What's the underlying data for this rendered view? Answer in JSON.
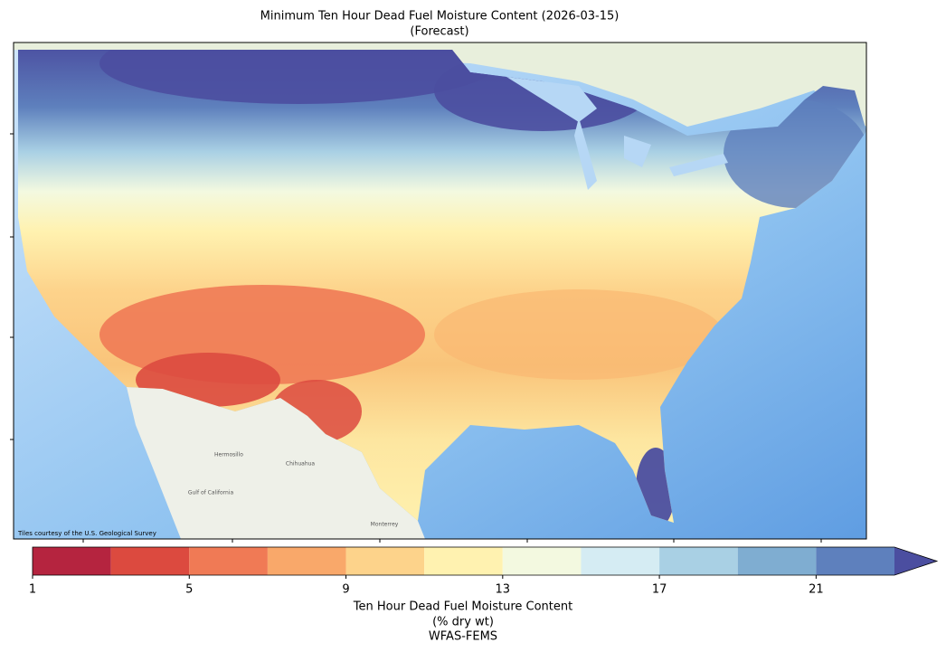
{
  "map": {
    "title": "Minimum Ten Hour Dead Fuel Moisture Content (2026-03-15)",
    "subtitle": "(Forecast)",
    "attribution": "Tiles courtesy of the U.S. Geological Survey",
    "places": [
      "Hermosillo",
      "Chihuahua",
      "Monterrey",
      "Gulf of California"
    ]
  },
  "colorbar": {
    "bounds": [
      1,
      3,
      5,
      7,
      9,
      11,
      13,
      15,
      17,
      19,
      21,
      23
    ],
    "colors": [
      "#b5243f",
      "#dc4a3f",
      "#f07a55",
      "#f9a86a",
      "#fdd38b",
      "#fff2b0",
      "#f3f9e0",
      "#d5ecf3",
      "#a9d0e4",
      "#7fadd1",
      "#5e80bd"
    ],
    "extend_color": "#4b4ea0",
    "ticks": [
      1,
      5,
      9,
      13,
      17,
      21
    ],
    "label": [
      "Ten Hour Dead Fuel Moisture Content",
      "(% dry wt)"
    ],
    "source": "WFAS-FEMS"
  }
}
